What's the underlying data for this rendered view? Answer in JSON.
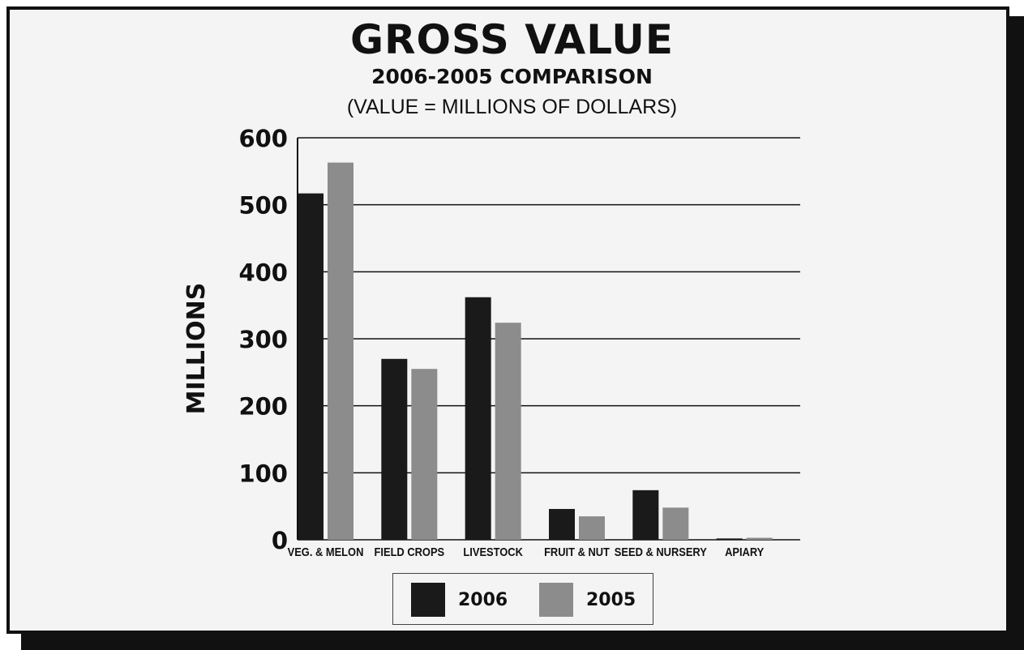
{
  "chart_data": {
    "type": "bar",
    "title": "GROSS VALUE",
    "subtitle": "2006-2005 COMPARISON",
    "note": "(VALUE = MILLIONS OF DOLLARS)",
    "ylabel": "MILLIONS",
    "xlabel": "",
    "ylim": [
      0,
      600
    ],
    "yticks": [
      0,
      100,
      200,
      300,
      400,
      500,
      600
    ],
    "grid": true,
    "legend_position": "bottom",
    "categories": [
      "VEG. & MELON",
      "FIELD CROPS",
      "LIVESTOCK",
      "FRUIT & NUT",
      "SEED & NURSERY",
      "APIARY"
    ],
    "series": [
      {
        "name": "2006",
        "color": "#1a1a1a",
        "values": [
          517,
          270,
          362,
          46,
          74,
          2
        ]
      },
      {
        "name": "2005",
        "color": "#8c8c8c",
        "values": [
          563,
          255,
          324,
          35,
          48,
          3
        ]
      }
    ]
  }
}
